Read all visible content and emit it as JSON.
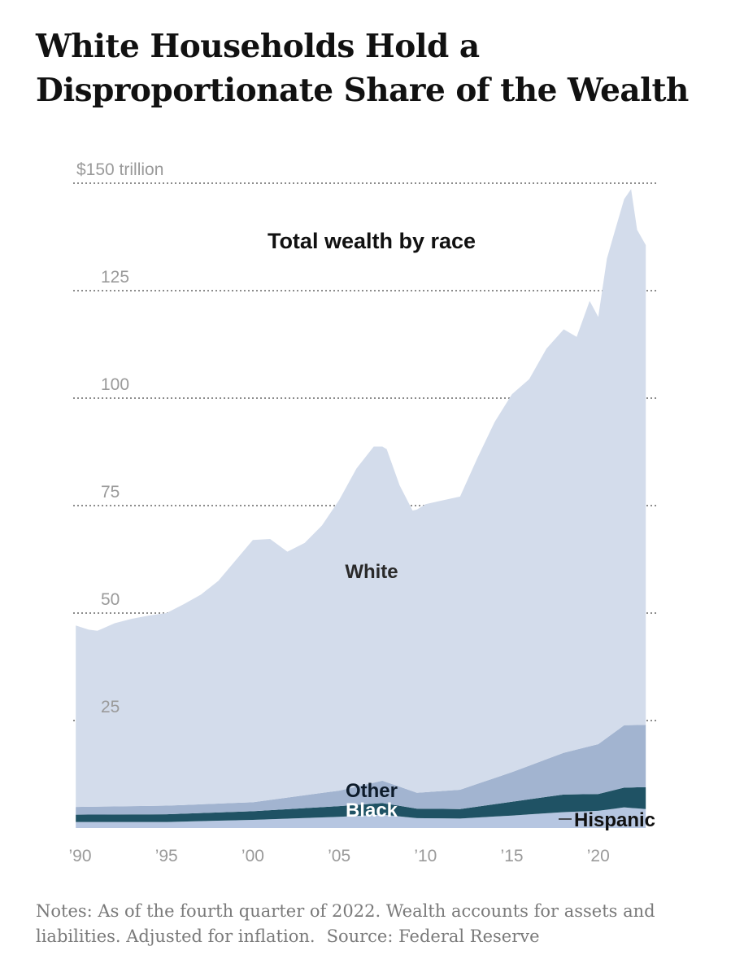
{
  "headline": "White Households Hold a Disproportionate Share of the Wealth",
  "notes": {
    "text": "Notes: As of the fourth quarter of 2022. Wealth accounts for assets and liabilities. Adjusted for inflation.",
    "source": "Source: Federal Reserve"
  },
  "colors": {
    "white": "#d3dceb",
    "other": "#a2b4d0",
    "black": "#1f5264",
    "hispanic": "#b6c6e1",
    "grid": "#8c8c8c"
  },
  "chart_data": {
    "type": "area",
    "stacked": true,
    "title": "Total wealth by race",
    "xlim": [
      1989.6,
      2023.4
    ],
    "ylim": [
      0,
      150
    ],
    "yticks": [
      {
        "value": 150,
        "label": "$150 trillion"
      },
      {
        "value": 125,
        "label": "125"
      },
      {
        "value": 100,
        "label": "100"
      },
      {
        "value": 75,
        "label": "75"
      },
      {
        "value": 50,
        "label": "50"
      },
      {
        "value": 25,
        "label": "25"
      }
    ],
    "xticks": [
      {
        "value": 1990,
        "label": "’90"
      },
      {
        "value": 1995,
        "label": "’95"
      },
      {
        "value": 2000,
        "label": "’00"
      },
      {
        "value": 2005,
        "label": "’05"
      },
      {
        "value": 2010,
        "label": "’10"
      },
      {
        "value": 2015,
        "label": "’15"
      },
      {
        "value": 2020,
        "label": "’20"
      }
    ],
    "grid": true,
    "stack_order": [
      "Hispanic",
      "Black",
      "Other",
      "White"
    ],
    "series": [
      {
        "name": "Hispanic",
        "label": "Hispanic",
        "color": "#b6c6e1",
        "x": [
          1989.75,
          1995,
          2000,
          2005,
          2007.5,
          2009.5,
          2012,
          2015,
          2018,
          2020,
          2021.5,
          2022.75
        ],
        "y": [
          1.4,
          1.4,
          1.9,
          2.6,
          3.1,
          2.3,
          2.2,
          2.9,
          3.7,
          4.0,
          4.8,
          4.4
        ]
      },
      {
        "name": "Black",
        "label": "Black",
        "color": "#1f5264",
        "x": [
          1989.75,
          1995,
          2000,
          2005,
          2007.5,
          2009.5,
          2012,
          2015,
          2018,
          2020,
          2021.5,
          2022.75
        ],
        "y": [
          1.7,
          1.8,
          2.0,
          2.5,
          2.7,
          2.2,
          2.2,
          3.2,
          4.1,
          3.9,
          4.6,
          5.1
        ]
      },
      {
        "name": "Other",
        "label": "Other",
        "color": "#a2b4d0",
        "x": [
          1989.75,
          1995,
          2000,
          2005,
          2007.5,
          2009.5,
          2012,
          2015,
          2018,
          2020,
          2021.5,
          2022.75
        ],
        "y": [
          1.8,
          2.0,
          2.1,
          3.6,
          5.2,
          3.7,
          4.5,
          6.9,
          9.7,
          11.6,
          14.5,
          14.5
        ]
      },
      {
        "name": "White",
        "label": "White",
        "color": "#d3dceb",
        "x": [
          1989.75,
          1990.5,
          1991,
          1992,
          1993,
          1994,
          1995,
          1996,
          1997,
          1998,
          1999,
          2000,
          2001,
          2002,
          2003,
          2004,
          2005,
          2006,
          2007,
          2007.75,
          2008.5,
          2009.25,
          2010,
          2011,
          2012,
          2013,
          2014,
          2015,
          2016,
          2017,
          2018,
          2018.75,
          2019.5,
          2020,
          2020.5,
          2021,
          2021.5,
          2021.9,
          2022.25,
          2022.75
        ],
        "y": [
          42.2,
          41.2,
          40.9,
          42.6,
          43.6,
          44.3,
          44.8,
          46.7,
          48.8,
          51.8,
          56.4,
          61.0,
          60.7,
          57.2,
          58.7,
          62.2,
          67.6,
          74.0,
          78.2,
          77.5,
          70.1,
          65.3,
          67.0,
          67.6,
          68.2,
          75.8,
          82.8,
          87.9,
          89.9,
          95.5,
          98.5,
          96.0,
          103.6,
          99.4,
          111.5,
          117.0,
          122.4,
          124.7,
          115.2,
          111.6
        ]
      }
    ]
  }
}
